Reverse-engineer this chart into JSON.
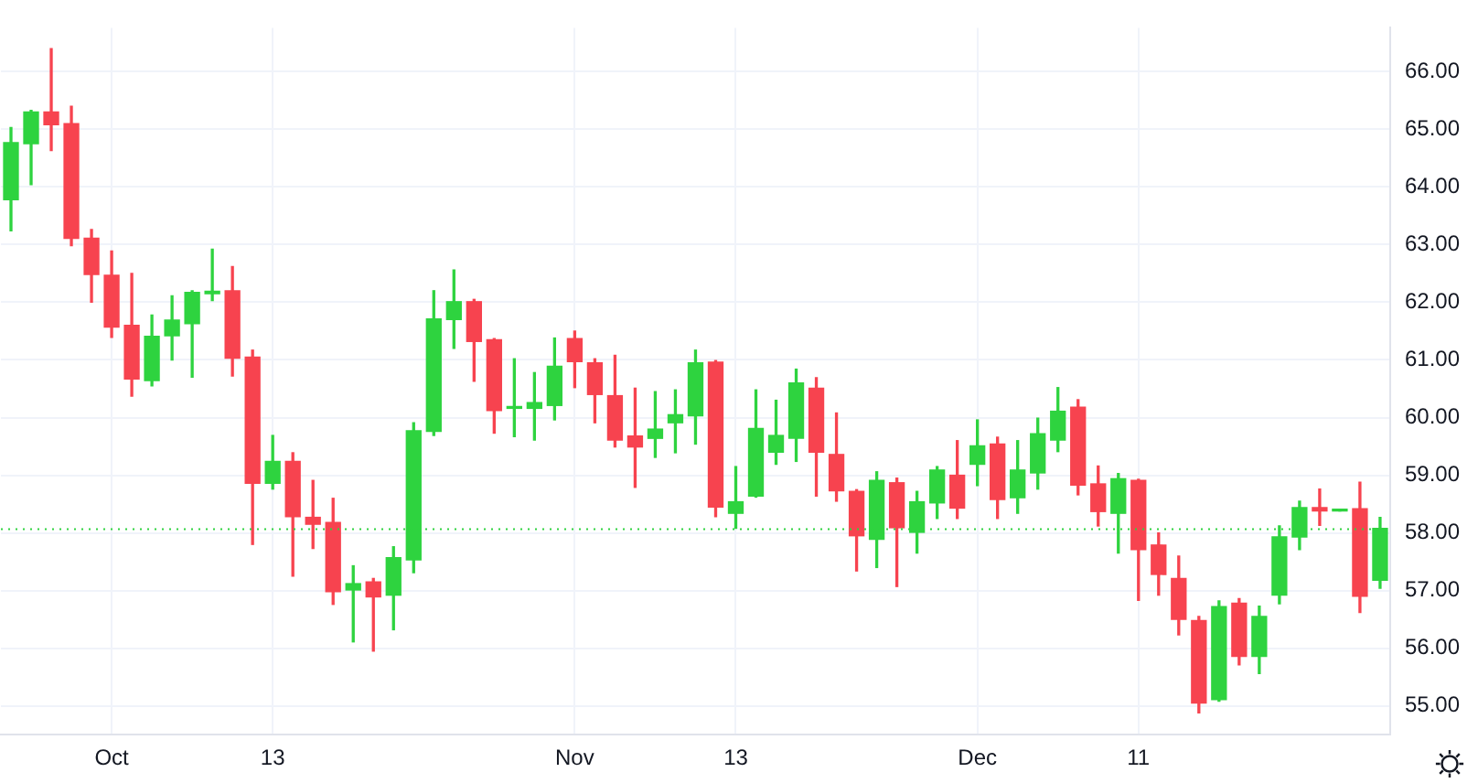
{
  "chart_data": {
    "type": "candlestick",
    "categories": [
      null,
      null,
      null,
      null,
      null,
      "Oct",
      null,
      null,
      null,
      null,
      null,
      null,
      null,
      "13",
      null,
      null,
      null,
      null,
      null,
      null,
      null,
      null,
      null,
      null,
      null,
      null,
      null,
      null,
      "Nov",
      null,
      null,
      null,
      null,
      null,
      null,
      null,
      "13",
      null,
      null,
      null,
      null,
      null,
      null,
      null,
      null,
      null,
      null,
      null,
      "Dec",
      null,
      null,
      null,
      null,
      null,
      null,
      null,
      "11",
      null,
      null,
      null,
      null,
      null,
      null,
      null,
      null,
      null,
      null,
      null,
      null
    ],
    "ohlc": [
      [
        63.78,
        65.03,
        63.24,
        64.77
      ],
      [
        64.75,
        65.33,
        64.04,
        65.3
      ],
      [
        65.3,
        66.4,
        64.63,
        65.08
      ],
      [
        65.1,
        65.4,
        62.98,
        63.11
      ],
      [
        63.11,
        63.26,
        62.0,
        62.48
      ],
      [
        62.47,
        62.89,
        61.39,
        61.57
      ],
      [
        61.6,
        62.5,
        60.37,
        60.67
      ],
      [
        60.64,
        61.78,
        60.55,
        61.41
      ],
      [
        61.42,
        62.11,
        61.0,
        61.69
      ],
      [
        61.63,
        62.2,
        60.7,
        62.17
      ],
      [
        62.15,
        62.92,
        62.03,
        62.19
      ],
      [
        62.2,
        62.62,
        60.72,
        61.03
      ],
      [
        61.05,
        61.17,
        57.8,
        58.86
      ],
      [
        58.86,
        59.69,
        58.76,
        59.24
      ],
      [
        59.24,
        59.39,
        57.25,
        58.28
      ],
      [
        58.27,
        58.91,
        57.73,
        58.15
      ],
      [
        58.18,
        58.6,
        56.76,
        56.98
      ],
      [
        57.01,
        57.43,
        56.11,
        57.12
      ],
      [
        57.15,
        57.21,
        55.95,
        56.89
      ],
      [
        56.92,
        57.76,
        56.32,
        57.57
      ],
      [
        57.53,
        59.91,
        57.31,
        59.77
      ],
      [
        59.76,
        62.2,
        59.69,
        61.71
      ],
      [
        61.7,
        62.56,
        61.2,
        62.01
      ],
      [
        62.01,
        62.05,
        60.63,
        61.32
      ],
      [
        61.35,
        61.37,
        59.73,
        60.12
      ],
      [
        60.16,
        61.02,
        59.67,
        60.18
      ],
      [
        60.16,
        60.78,
        59.61,
        60.26
      ],
      [
        60.21,
        61.38,
        59.96,
        60.89
      ],
      [
        61.37,
        61.5,
        60.52,
        60.97
      ],
      [
        60.95,
        61.02,
        59.91,
        60.4
      ],
      [
        60.38,
        61.08,
        59.49,
        59.61
      ],
      [
        59.68,
        60.51,
        58.79,
        59.49
      ],
      [
        59.64,
        60.45,
        59.31,
        59.8
      ],
      [
        59.91,
        60.48,
        59.39,
        60.05
      ],
      [
        60.03,
        61.17,
        59.54,
        60.95
      ],
      [
        60.96,
        60.99,
        58.28,
        58.45
      ],
      [
        58.34,
        59.15,
        58.08,
        58.54
      ],
      [
        58.64,
        60.48,
        58.62,
        59.81
      ],
      [
        59.4,
        60.3,
        59.19,
        59.69
      ],
      [
        59.64,
        60.84,
        59.24,
        60.6
      ],
      [
        60.51,
        60.69,
        58.64,
        59.4
      ],
      [
        59.36,
        60.08,
        58.55,
        58.73
      ],
      [
        58.72,
        58.75,
        57.34,
        57.95
      ],
      [
        57.89,
        59.06,
        57.4,
        58.91
      ],
      [
        58.87,
        58.95,
        57.07,
        58.09
      ],
      [
        58.01,
        58.72,
        57.65,
        58.54
      ],
      [
        58.52,
        59.15,
        58.25,
        59.09
      ],
      [
        59.0,
        59.6,
        58.25,
        58.43
      ],
      [
        59.19,
        59.96,
        58.82,
        59.51
      ],
      [
        59.54,
        59.66,
        58.25,
        58.58
      ],
      [
        58.61,
        59.6,
        58.34,
        59.09
      ],
      [
        59.04,
        59.99,
        58.76,
        59.72
      ],
      [
        59.61,
        60.52,
        59.41,
        60.11
      ],
      [
        60.18,
        60.31,
        58.66,
        58.83
      ],
      [
        58.85,
        59.16,
        58.12,
        58.37
      ],
      [
        58.34,
        59.03,
        57.65,
        58.94
      ],
      [
        58.91,
        58.93,
        56.83,
        57.71
      ],
      [
        57.79,
        58.0,
        56.92,
        57.28
      ],
      [
        57.21,
        57.6,
        56.23,
        56.5
      ],
      [
        56.48,
        56.55,
        54.88,
        55.05
      ],
      [
        55.11,
        56.82,
        55.08,
        56.72
      ],
      [
        56.78,
        56.86,
        55.71,
        55.86
      ],
      [
        55.86,
        56.73,
        55.56,
        56.55
      ],
      [
        56.92,
        58.12,
        56.77,
        57.93
      ],
      [
        57.93,
        58.55,
        57.71,
        58.44
      ],
      [
        58.44,
        58.76,
        58.13,
        58.38
      ],
      [
        58.38,
        58.39,
        58.38,
        58.39
      ],
      [
        58.42,
        58.88,
        56.62,
        56.9
      ],
      [
        57.18,
        58.27,
        57.04,
        58.08
      ]
    ],
    "colors": [
      "#2ed33f",
      "#2ed33f",
      "#f7434f",
      "#f7434f",
      "#f7434f",
      "#f7434f",
      "#f7434f",
      "#2ed33f",
      "#2ed33f",
      "#2ed33f",
      "#2ed33f",
      "#f7434f",
      "#f7434f",
      "#2ed33f",
      "#f7434f",
      "#f7434f",
      "#f7434f",
      "#2ed33f",
      "#f7434f",
      "#2ed33f",
      "#2ed33f",
      "#2ed33f",
      "#2ed33f",
      "#f7434f",
      "#f7434f",
      "#2ed33f",
      "#2ed33f",
      "#2ed33f",
      "#f7434f",
      "#f7434f",
      "#f7434f",
      "#f7434f",
      "#2ed33f",
      "#2ed33f",
      "#2ed33f",
      "#f7434f",
      "#2ed33f",
      "#2ed33f",
      "#2ed33f",
      "#2ed33f",
      "#f7434f",
      "#f7434f",
      "#f7434f",
      "#2ed33f",
      "#f7434f",
      "#2ed33f",
      "#2ed33f",
      "#f7434f",
      "#2ed33f",
      "#f7434f",
      "#2ed33f",
      "#2ed33f",
      "#2ed33f",
      "#f7434f",
      "#f7434f",
      "#2ed33f",
      "#f7434f",
      "#f7434f",
      "#f7434f",
      "#f7434f",
      "#2ed33f",
      "#f7434f",
      "#2ed33f",
      "#2ed33f",
      "#2ed33f",
      "#f7434f",
      "#2ed33f",
      "#f7434f",
      "#2ed33f"
    ],
    "ylim": [
      54.5,
      66.76
    ],
    "yticks": [
      {
        "value": 55,
        "label": "55.00"
      },
      {
        "value": 56,
        "label": "56.00"
      },
      {
        "value": 57,
        "label": "57.00"
      },
      {
        "value": 58,
        "label": "58.00"
      },
      {
        "value": 59,
        "label": "59.00"
      },
      {
        "value": 60,
        "label": "60.00"
      },
      {
        "value": 61,
        "label": "61.00"
      },
      {
        "value": 62,
        "label": "62.00"
      },
      {
        "value": 63,
        "label": "63.00"
      },
      {
        "value": 64,
        "label": "64.00"
      },
      {
        "value": 65,
        "label": "65.00"
      },
      {
        "value": 66,
        "label": "66.00"
      }
    ],
    "ref_lines": [
      {
        "axis": "y",
        "value": 58.08,
        "color": "#2ed33f",
        "line_style": "dotted"
      }
    ],
    "grid": true,
    "legend": false
  }
}
